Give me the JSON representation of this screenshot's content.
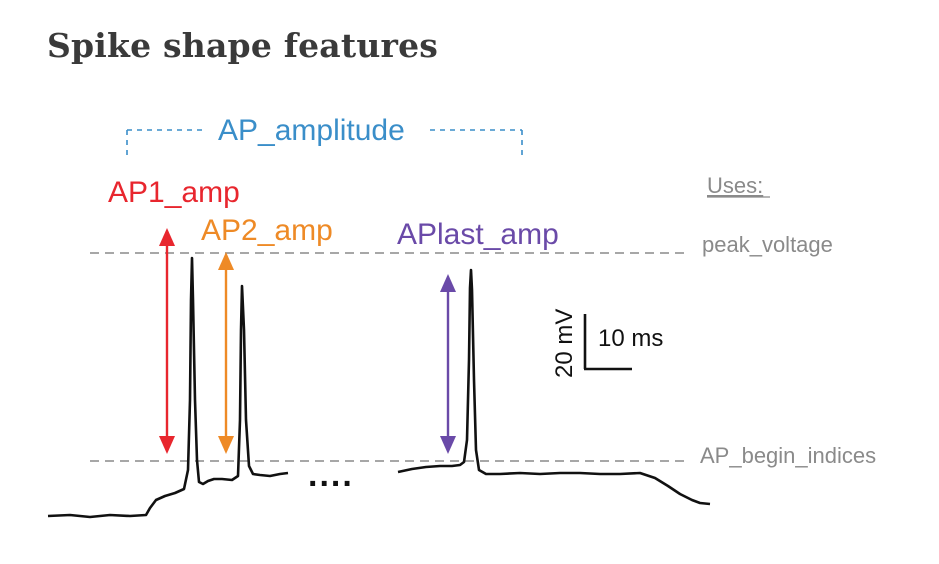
{
  "title": "Spike shape features",
  "labels": {
    "ap_amplitude": "AP_amplitude",
    "ap1_amp": "AP1_amp",
    "ap2_amp": "AP2_amp",
    "aplast_amp": "APlast_amp",
    "uses": "Uses:",
    "peak_voltage": "peak_voltage",
    "ap_begin_indices": "AP_begin_indices",
    "scale_v": "20 mV",
    "scale_t": "10 ms",
    "ellipsis": "...."
  },
  "colors": {
    "ap_amplitude": "#3a8ec9",
    "ap1_amp": "#e8262e",
    "ap2_amp": "#ee8a26",
    "aplast_amp": "#6a4aa8",
    "reference": "#8a8a8a",
    "trace": "#111111",
    "title": "#3a3a3a"
  }
}
